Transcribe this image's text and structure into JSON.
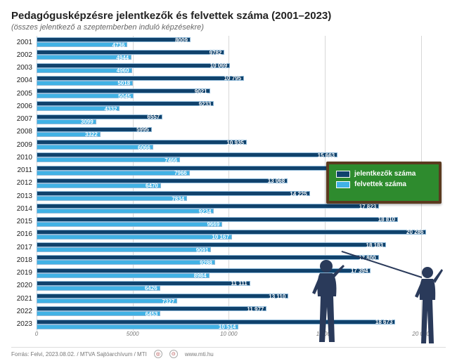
{
  "title": "Pedagógusképzésre jelentkezők és felvettek száma (2001–2023)",
  "subtitle": "(összes jelentkező a szeptemberben induló képzésekre)",
  "chart": {
    "type": "horizontal_grouped_bar",
    "xmax": 21000,
    "xticks": [
      0,
      5000,
      10000,
      15000,
      20000
    ],
    "xtick_labels": [
      "0",
      "5000",
      "10 000",
      "15 000",
      "20 000"
    ],
    "grid_color": "#d7d7d7",
    "background_color": "#ffffff",
    "series": [
      {
        "key": "jelentkezok",
        "label": "jelentkezők száma",
        "color": "#10426c"
      },
      {
        "key": "felvettek",
        "label": "felvettek száma",
        "color": "#41b2e5"
      }
    ],
    "years": [
      {
        "year": "2001",
        "jelentkezok": 8009,
        "felvettek": 4736
      },
      {
        "year": "2002",
        "jelentkezok": 9782,
        "felvettek": 4944
      },
      {
        "year": "2003",
        "jelentkezok": 10069,
        "felvettek": 4960,
        "jelentkezok_label": "10 069"
      },
      {
        "year": "2004",
        "jelentkezok": 10795,
        "felvettek": 5018,
        "jelentkezok_label": "10 795"
      },
      {
        "year": "2005",
        "jelentkezok": 9021,
        "felvettek": 5045
      },
      {
        "year": "2006",
        "jelentkezok": 9233,
        "felvettek": 4332
      },
      {
        "year": "2007",
        "jelentkezok": 6557,
        "felvettek": 3099
      },
      {
        "year": "2008",
        "jelentkezok": 5995,
        "felvettek": 3322
      },
      {
        "year": "2009",
        "jelentkezok": 10935,
        "felvettek": 6066,
        "jelentkezok_label": "10 935"
      },
      {
        "year": "2010",
        "jelentkezok": 15663,
        "felvettek": 7466,
        "jelentkezok_label": "15 663"
      },
      {
        "year": "2011",
        "jelentkezok": 16246,
        "felvettek": 7966,
        "jelentkezok_label": "16 246"
      },
      {
        "year": "2012",
        "jelentkezok": 13068,
        "felvettek": 6470,
        "jelentkezok_label": "13 068"
      },
      {
        "year": "2013",
        "jelentkezok": 14225,
        "felvettek": 7834,
        "jelentkezok_label": "14 225"
      },
      {
        "year": "2014",
        "jelentkezok": 17823,
        "felvettek": 9234,
        "jelentkezok_label": "17 823"
      },
      {
        "year": "2015",
        "jelentkezok": 18810,
        "felvettek": 9669,
        "jelentkezok_label": "18 810"
      },
      {
        "year": "2016",
        "jelentkezok": 20286,
        "felvettek": 10167,
        "jelentkezok_label": "20 286",
        "felvettek_label": "10 167"
      },
      {
        "year": "2017",
        "jelentkezok": 18183,
        "felvettek": 9091,
        "jelentkezok_label": "18 183"
      },
      {
        "year": "2018",
        "jelentkezok": 17800,
        "felvettek": 9288,
        "jelentkezok_label": "17 800"
      },
      {
        "year": "2019",
        "jelentkezok": 17394,
        "felvettek": 8984,
        "jelentkezok_label": "17 394"
      },
      {
        "year": "2020",
        "jelentkezok": 11111,
        "felvettek": 6426,
        "jelentkezok_label": "11 111"
      },
      {
        "year": "2021",
        "jelentkezok": 13110,
        "felvettek": 7327,
        "jelentkezok_label": "13 110"
      },
      {
        "year": "2022",
        "jelentkezok": 11977,
        "felvettek": 6453,
        "jelentkezok_label": "11 977"
      },
      {
        "year": "2023",
        "jelentkezok": 18673,
        "felvettek": 10514,
        "jelentkezok_label": "18 673",
        "felvettek_label": "10 514"
      }
    ]
  },
  "legend": {
    "bg_color": "#2e8b2e",
    "border_color": "#5b3a1f",
    "item1_label": "jelentkezők száma",
    "item1_color": "#10426c",
    "item2_label": "felvettek száma",
    "item2_color": "#41b2e5"
  },
  "footer": {
    "source": "Forrás: Felvi, 2023.08.02. / MTVA Sajtóarchívum / MTI",
    "url": "www.mti.hu"
  }
}
